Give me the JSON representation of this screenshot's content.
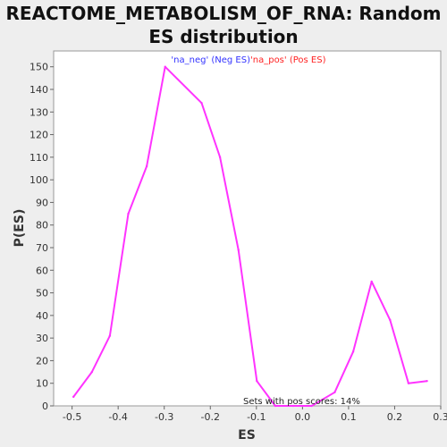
{
  "chart_data": {
    "type": "line",
    "title": "REACTOME_METABOLISM_OF_RNA: Random ES distribution",
    "xlabel": "ES",
    "ylabel": "P(ES)",
    "xlim": [
      -0.54,
      0.3
    ],
    "ylim": [
      0,
      157
    ],
    "xticks": [
      -0.5,
      -0.4,
      -0.3,
      -0.2,
      -0.1,
      0.0,
      0.1,
      0.2,
      0.3
    ],
    "xtick_labels": [
      "-0.5",
      "-0.4",
      "-0.3",
      "-0.2",
      "-0.1",
      "0.0",
      "0.1",
      "0.2",
      "0.3"
    ],
    "yticks": [
      0,
      10,
      20,
      30,
      40,
      50,
      60,
      70,
      80,
      90,
      100,
      110,
      120,
      130,
      140,
      150
    ],
    "ytick_labels": [
      "0",
      "10",
      "20",
      "30",
      "40",
      "50",
      "60",
      "70",
      "80",
      "90",
      "100",
      "110",
      "120",
      "130",
      "140",
      "150"
    ],
    "grid": false,
    "legend": [
      {
        "label": "'na_neg' (Neg ES)",
        "color": "#3333ff"
      },
      {
        "label": "'na_pos' (Pos ES)",
        "color": "#ff2222"
      }
    ],
    "legend_placement": "top-center",
    "annotation": "Sets with pos scores: 14%",
    "series": [
      {
        "color": "#ff33ff",
        "x": [
          -0.497,
          -0.457,
          -0.418,
          -0.378,
          -0.338,
          -0.298,
          -0.219,
          -0.179,
          -0.139,
          -0.099,
          -0.059,
          -0.02,
          0.02,
          0.07,
          0.11,
          0.15,
          0.19,
          0.23,
          0.27
        ],
        "y": [
          4,
          15,
          31,
          85,
          106,
          150,
          134,
          110,
          69,
          11,
          0,
          0,
          0,
          6,
          24,
          55,
          38,
          10,
          11
        ]
      }
    ]
  }
}
